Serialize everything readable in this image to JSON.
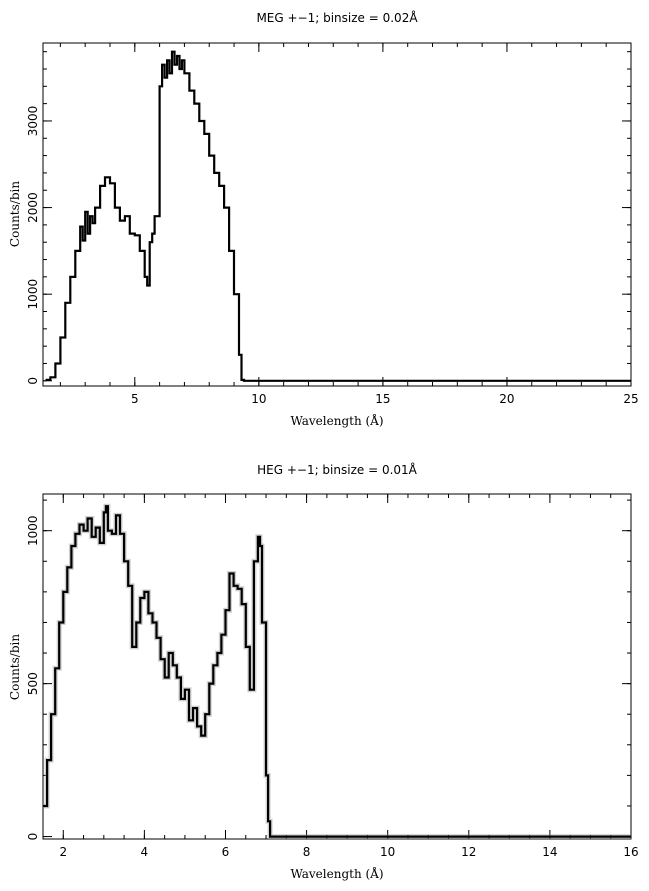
{
  "chart_data": [
    {
      "type": "line",
      "title": "MEG +−1; binsize = 0.02Å",
      "xlabel": "Wavelength (Å)",
      "ylabel": "Counts/bin",
      "xlim": [
        1.3,
        25
      ],
      "ylim": [
        -60,
        3900
      ],
      "xticks": [
        5,
        10,
        15,
        20,
        25
      ],
      "yticks": [
        0,
        1000,
        2000,
        3000
      ],
      "x_minor_step": 1,
      "y_minor_step": 200,
      "series": [
        {
          "x": [
            1.4,
            1.6,
            1.8,
            2.0,
            2.2,
            2.4,
            2.6,
            2.8,
            2.9,
            3.0,
            3.1,
            3.2,
            3.3,
            3.4,
            3.6,
            3.8,
            4.0,
            4.2,
            4.4,
            4.6,
            4.8,
            5.0,
            5.2,
            5.4,
            5.5,
            5.6,
            5.7,
            5.8,
            6.0,
            6.1,
            6.2,
            6.3,
            6.4,
            6.5,
            6.6,
            6.7,
            6.8,
            6.9,
            7.0,
            7.2,
            7.4,
            7.6,
            7.8,
            8.0,
            8.2,
            8.4,
            8.6,
            8.8,
            9.0,
            9.2,
            9.3,
            9.4,
            10,
            12,
            15,
            20,
            25
          ],
          "y": [
            10,
            40,
            200,
            500,
            900,
            1200,
            1500,
            1780,
            1620,
            1950,
            1700,
            1900,
            1820,
            2000,
            2250,
            2350,
            2280,
            2000,
            1850,
            1900,
            1700,
            1680,
            1500,
            1200,
            1100,
            1600,
            1700,
            1900,
            3400,
            3650,
            3500,
            3700,
            3550,
            3800,
            3650,
            3750,
            3600,
            3700,
            3550,
            3350,
            3200,
            3000,
            2850,
            2600,
            2400,
            2250,
            2000,
            1500,
            1000,
            300,
            10,
            0,
            0,
            0,
            0,
            0,
            0
          ]
        }
      ]
    },
    {
      "type": "line",
      "title": "HEG +−1; binsize = 0.01Å",
      "xlabel": "Wavelength (Å)",
      "ylabel": "Counts/bin",
      "xlim": [
        1.5,
        16
      ],
      "ylim": [
        -8,
        1120
      ],
      "xticks": [
        2,
        4,
        6,
        8,
        10,
        12,
        14,
        16
      ],
      "yticks": [
        0,
        500,
        1000
      ],
      "x_minor_step": 0.5,
      "y_minor_step": 100,
      "series": [
        {
          "x": [
            1.5,
            1.6,
            1.7,
            1.8,
            1.9,
            2.0,
            2.1,
            2.2,
            2.3,
            2.4,
            2.5,
            2.6,
            2.7,
            2.8,
            2.9,
            3.0,
            3.05,
            3.1,
            3.2,
            3.3,
            3.4,
            3.5,
            3.6,
            3.7,
            3.8,
            3.9,
            4.0,
            4.1,
            4.2,
            4.3,
            4.4,
            4.5,
            4.6,
            4.7,
            4.8,
            4.9,
            5.0,
            5.1,
            5.2,
            5.3,
            5.4,
            5.5,
            5.6,
            5.7,
            5.8,
            5.9,
            6.0,
            6.1,
            6.2,
            6.3,
            6.4,
            6.5,
            6.6,
            6.7,
            6.8,
            6.85,
            6.9,
            7.0,
            7.05,
            7.1,
            8,
            10,
            12,
            14,
            16
          ],
          "y": [
            100,
            250,
            400,
            550,
            700,
            800,
            880,
            950,
            990,
            1020,
            1000,
            1040,
            980,
            1010,
            960,
            1060,
            1080,
            1000,
            990,
            1050,
            990,
            900,
            820,
            620,
            700,
            780,
            800,
            730,
            700,
            650,
            580,
            520,
            600,
            560,
            520,
            450,
            480,
            380,
            420,
            360,
            330,
            400,
            500,
            560,
            600,
            660,
            740,
            860,
            820,
            810,
            760,
            620,
            480,
            900,
            980,
            950,
            700,
            200,
            50,
            0,
            0,
            0,
            0,
            0,
            0
          ]
        }
      ]
    }
  ]
}
